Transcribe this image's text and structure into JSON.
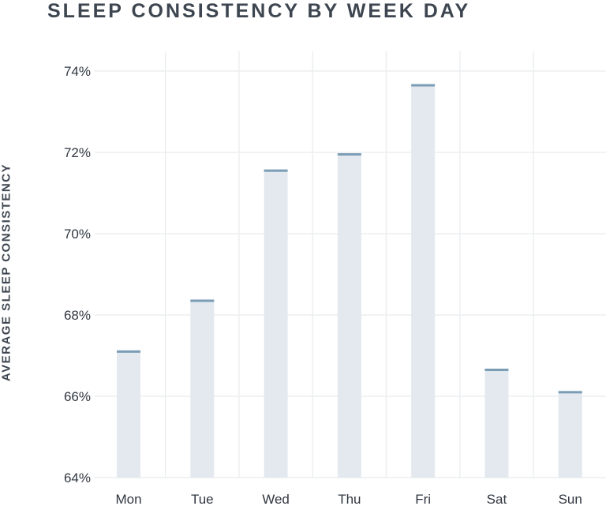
{
  "chart_data": {
    "type": "bar",
    "title": "SLEEP CONSISTENCY BY WEEK DAY",
    "xlabel": "",
    "ylabel": "AVERAGE SLEEP CONSISTENCY",
    "categories": [
      "Mon",
      "Tue",
      "Wed",
      "Thu",
      "Fri",
      "Sat",
      "Sun"
    ],
    "values": [
      67.1,
      68.35,
      71.55,
      71.95,
      73.65,
      66.65,
      66.1
    ],
    "ylim": [
      64,
      74
    ],
    "yticks": [
      "64%",
      "66%",
      "68%",
      "70%",
      "72%",
      "74%"
    ],
    "grid": true,
    "legend": "none",
    "colors": {
      "bar_fill": "#e3e9ef",
      "bar_cap": "#7a9db5",
      "grid": "#eceef0",
      "text": "#2f3740"
    }
  }
}
